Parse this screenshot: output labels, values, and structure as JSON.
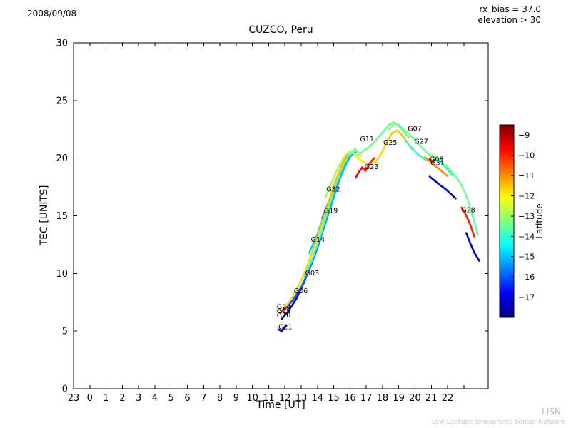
{
  "header": {
    "date": "2008/09/08",
    "rx_bias": "rx_bias = 37.0",
    "elevation": "elevation > 30"
  },
  "footer": {
    "watermark_acronym": "LISN",
    "watermark_full": "Low-Latitude Ionospheric Sensor Network"
  },
  "chart_data": {
    "type": "scatter",
    "title": "CUZCO, Peru",
    "xlabel": "Time [UT]",
    "ylabel": "TEC [UNITS]",
    "xlim": [
      -1,
      24.5
    ],
    "ylim": [
      0,
      30
    ],
    "grid": false,
    "xticks": [
      {
        "value": -1,
        "label": "23"
      },
      {
        "value": 0,
        "label": "0"
      },
      {
        "value": 1,
        "label": "1"
      },
      {
        "value": 2,
        "label": "2"
      },
      {
        "value": 3,
        "label": "3"
      },
      {
        "value": 4,
        "label": "4"
      },
      {
        "value": 5,
        "label": "5"
      },
      {
        "value": 6,
        "label": "6"
      },
      {
        "value": 7,
        "label": "7"
      },
      {
        "value": 8,
        "label": "8"
      },
      {
        "value": 9,
        "label": "9"
      },
      {
        "value": 10,
        "label": "10"
      },
      {
        "value": 11,
        "label": "11"
      },
      {
        "value": 12,
        "label": "12"
      },
      {
        "value": 13,
        "label": "13"
      },
      {
        "value": 14,
        "label": "14"
      },
      {
        "value": 15,
        "label": "15"
      },
      {
        "value": 16,
        "label": "16"
      },
      {
        "value": 17,
        "label": "17"
      },
      {
        "value": 18,
        "label": "18"
      },
      {
        "value": 19,
        "label": "19"
      },
      {
        "value": 20,
        "label": "20"
      },
      {
        "value": 21,
        "label": "21"
      },
      {
        "value": 22,
        "label": "22"
      },
      {
        "value": 23,
        "label": ""
      },
      {
        "value": 24,
        "label": ""
      }
    ],
    "yticks": [
      0,
      5,
      10,
      15,
      20,
      25,
      30
    ],
    "colorbar": {
      "label": "Latitude",
      "min": -18,
      "max": -8.5,
      "ticks": [
        -9,
        -10,
        -11,
        -12,
        -13,
        -14,
        -15,
        -16,
        -17
      ],
      "colormap": "jet"
    },
    "tracks": [
      {
        "sat": "G21",
        "points": [
          [
            11.6,
            5.15,
            -17.6
          ],
          [
            11.8,
            5.0,
            -17.6
          ],
          [
            12.05,
            5.45,
            -17.5
          ]
        ]
      },
      {
        "sat": "G10",
        "points": [
          [
            11.8,
            6.05,
            -17.6
          ],
          [
            12.2,
            6.7,
            -17.4
          ],
          [
            12.7,
            7.8,
            -17.1
          ],
          [
            13.2,
            9.3,
            -16.9
          ],
          [
            13.7,
            11.2,
            -16.7
          ],
          [
            14.2,
            13.3,
            -16.5
          ],
          [
            14.7,
            15.5,
            -16.3
          ],
          [
            15.1,
            17.3,
            -16.1
          ],
          [
            15.5,
            18.9,
            -15.9
          ],
          [
            15.9,
            20.1,
            -15.8
          ],
          [
            16.2,
            20.6,
            -15.7
          ]
        ]
      },
      {
        "sat": "G06",
        "points": [
          [
            12.0,
            6.9,
            -16.3
          ],
          [
            12.5,
            7.7,
            -16.1
          ],
          [
            13.0,
            8.8,
            -15.9
          ],
          [
            13.5,
            10.3,
            -15.7
          ],
          [
            14.0,
            12.2,
            -15.5
          ],
          [
            14.5,
            14.4,
            -15.4
          ],
          [
            15.0,
            16.6,
            -15.2
          ],
          [
            15.4,
            18.3,
            -15.1
          ],
          [
            15.8,
            19.6,
            -15.0
          ],
          [
            16.1,
            20.3,
            -14.9
          ]
        ]
      },
      {
        "sat": "G14",
        "points": [
          [
            13.5,
            11.8,
            -15.1
          ],
          [
            14.0,
            13.4,
            -14.9
          ],
          [
            14.5,
            15.4,
            -14.8
          ],
          [
            15.0,
            17.4,
            -14.6
          ],
          [
            15.4,
            18.9,
            -14.5
          ],
          [
            15.8,
            20.0,
            -14.4
          ],
          [
            16.1,
            20.5,
            -14.3
          ]
        ]
      },
      {
        "sat": "G19",
        "points": [
          [
            14.3,
            14.8,
            -15.8
          ],
          [
            14.8,
            16.6,
            -15.6
          ],
          [
            15.3,
            18.4,
            -15.4
          ],
          [
            15.7,
            19.6,
            -15.3
          ],
          [
            16.0,
            20.2,
            -15.2
          ],
          [
            16.35,
            20.5,
            -15.1
          ]
        ]
      },
      {
        "sat": "G03",
        "points": [
          [
            13.2,
            9.7,
            -13.9
          ],
          [
            13.7,
            11.3,
            -13.8
          ],
          [
            14.2,
            13.4,
            -13.7
          ],
          [
            14.7,
            15.7,
            -13.6
          ],
          [
            15.1,
            17.6,
            -13.5
          ],
          [
            15.5,
            19.1,
            -13.4
          ],
          [
            15.9,
            20.2,
            -13.3
          ]
        ]
      },
      {
        "sat": "G32",
        "points": [
          [
            14.5,
            16.6,
            -13.0
          ],
          [
            14.9,
            18.0,
            -12.9
          ],
          [
            15.3,
            19.3,
            -12.9
          ],
          [
            15.7,
            20.2,
            -12.8
          ],
          [
            16.0,
            20.6,
            -12.8
          ],
          [
            16.35,
            20.3,
            -12.7
          ],
          [
            16.7,
            20.2,
            -12.7
          ]
        ]
      },
      {
        "sat": "G24",
        "points": [
          [
            11.75,
            6.7,
            -11.9
          ],
          [
            12.2,
            7.4,
            -11.8
          ],
          [
            12.7,
            8.5,
            -11.7
          ],
          [
            13.2,
            10.0,
            -11.7
          ],
          [
            13.7,
            11.9,
            -11.6
          ],
          [
            14.2,
            14.0,
            -11.5
          ],
          [
            14.7,
            16.2,
            -11.5
          ],
          [
            15.1,
            18.0,
            -11.4
          ],
          [
            15.5,
            19.4,
            -11.4
          ],
          [
            15.85,
            20.3,
            -11.3
          ]
        ]
      },
      {
        "sat": "G29",
        "points": [
          [
            11.7,
            6.55,
            -10.1
          ],
          [
            11.95,
            6.9,
            -10.0
          ],
          [
            12.15,
            7.1,
            -9.9
          ]
        ]
      },
      {
        "sat": "G11",
        "points": [
          [
            16.0,
            20.3,
            -13.3
          ],
          [
            16.3,
            20.8,
            -13.3
          ],
          [
            16.6,
            20.4,
            -13.3
          ],
          [
            16.9,
            20.7,
            -13.4
          ],
          [
            17.2,
            21.0,
            -13.4
          ],
          [
            17.5,
            21.4,
            -13.4
          ],
          [
            17.8,
            21.9,
            -13.5
          ],
          [
            18.1,
            22.4,
            -13.5
          ],
          [
            18.4,
            22.9,
            -13.5
          ],
          [
            18.7,
            23.1,
            -13.5
          ],
          [
            19.0,
            22.8,
            -13.6
          ],
          [
            19.3,
            22.3,
            -13.6
          ],
          [
            19.6,
            21.8,
            -13.6
          ]
        ]
      },
      {
        "sat": "G25",
        "points": [
          [
            16.4,
            20.1,
            -12.0
          ],
          [
            16.8,
            19.7,
            -11.9
          ],
          [
            17.2,
            19.4,
            -11.8
          ],
          [
            17.6,
            19.7,
            -11.7
          ],
          [
            18.0,
            20.6,
            -11.7
          ],
          [
            18.3,
            21.5,
            -11.6
          ],
          [
            18.6,
            22.2,
            -11.6
          ],
          [
            18.9,
            22.4,
            -11.5
          ],
          [
            19.2,
            22.0,
            -11.5
          ],
          [
            19.5,
            21.4,
            -11.4
          ],
          [
            19.8,
            20.8,
            -11.4
          ]
        ]
      },
      {
        "sat": "G23",
        "points": [
          [
            16.35,
            18.3,
            -9.7
          ],
          [
            16.55,
            18.8,
            -9.7
          ],
          [
            16.75,
            19.2,
            -9.8
          ],
          [
            16.95,
            18.9,
            -9.8
          ],
          [
            17.15,
            19.4,
            -9.9
          ],
          [
            17.35,
            19.8,
            -9.9
          ],
          [
            17.5,
            20.0,
            -10.0
          ]
        ]
      },
      {
        "sat": "G07",
        "points": [
          [
            18.4,
            22.5,
            -13.1
          ],
          [
            18.7,
            23.0,
            -13.1
          ],
          [
            19.0,
            22.9,
            -13.2
          ],
          [
            19.3,
            22.5,
            -13.2
          ],
          [
            19.7,
            22.0,
            -13.3
          ],
          [
            20.1,
            21.4,
            -13.3
          ],
          [
            20.5,
            20.8,
            -13.4
          ],
          [
            20.9,
            20.3,
            -13.4
          ],
          [
            21.3,
            20.0,
            -13.5
          ],
          [
            21.6,
            19.9,
            -13.5
          ]
        ]
      },
      {
        "sat": "G27",
        "points": [
          [
            19.4,
            21.5,
            -13.9
          ],
          [
            19.8,
            20.9,
            -13.9
          ],
          [
            20.2,
            20.3,
            -14.0
          ],
          [
            20.6,
            19.9,
            -14.0
          ],
          [
            21.0,
            19.7,
            -14.0
          ],
          [
            21.35,
            19.95,
            -14.1
          ],
          [
            21.7,
            19.5,
            -14.1
          ],
          [
            22.0,
            19.0,
            -14.1
          ],
          [
            22.3,
            18.5,
            -14.2
          ]
        ]
      },
      {
        "points": [
          [
            21.9,
            19.4,
            -13.2
          ],
          [
            22.2,
            18.9,
            -13.2
          ],
          [
            22.5,
            18.4,
            -13.3
          ],
          [
            22.8,
            17.8,
            -13.3
          ],
          [
            23.1,
            16.9,
            -13.4
          ],
          [
            23.35,
            15.9,
            -13.4
          ],
          [
            23.6,
            14.7,
            -13.5
          ],
          [
            23.85,
            13.4,
            -13.5
          ]
        ]
      },
      {
        "sat": "G28",
        "points": [
          [
            22.85,
            15.7,
            -10.2
          ],
          [
            23.05,
            15.3,
            -10.1
          ],
          [
            23.25,
            14.7,
            -10.0
          ],
          [
            23.45,
            14.0,
            -9.9
          ],
          [
            23.65,
            13.2,
            -9.9
          ]
        ]
      },
      {
        "points": [
          [
            23.15,
            13.5,
            -17.2
          ],
          [
            23.4,
            12.6,
            -17.3
          ],
          [
            23.65,
            11.8,
            -17.4
          ],
          [
            23.95,
            11.1,
            -17.5
          ]
        ]
      },
      {
        "points": [
          [
            20.9,
            18.4,
            -17.2
          ],
          [
            21.2,
            18.05,
            -17.2
          ],
          [
            21.5,
            17.7,
            -17.3
          ],
          [
            21.85,
            17.35,
            -17.3
          ],
          [
            22.2,
            16.9,
            -17.4
          ],
          [
            22.5,
            16.5,
            -17.4
          ]
        ]
      },
      {
        "sat": "G08",
        "points": [
          [
            20.6,
            20.1,
            -11.2
          ],
          [
            21.0,
            19.6,
            -11.1
          ],
          [
            21.35,
            19.2,
            -11.0
          ],
          [
            21.7,
            18.8,
            -11.0
          ],
          [
            22.0,
            18.45,
            -10.9
          ]
        ]
      },
      {
        "sat": "G31",
        "points": [
          [
            20.9,
            19.9,
            -9.6
          ],
          [
            21.15,
            19.65,
            -9.5
          ]
        ]
      }
    ],
    "annotations": [
      {
        "text": "G07",
        "t": 19.55,
        "tec": 22.35
      },
      {
        "text": "G27",
        "t": 19.95,
        "tec": 21.25
      },
      {
        "text": "G11",
        "t": 16.62,
        "tec": 21.45
      },
      {
        "text": "G25",
        "t": 18.05,
        "tec": 21.15
      },
      {
        "text": "G23",
        "t": 16.9,
        "tec": 19.05
      },
      {
        "text": "G32",
        "t": 14.55,
        "tec": 17.1
      },
      {
        "text": "G19",
        "t": 14.4,
        "tec": 15.25
      },
      {
        "text": "G14",
        "t": 13.6,
        "tec": 12.75
      },
      {
        "text": "G03",
        "t": 13.25,
        "tec": 9.85
      },
      {
        "text": "G06",
        "t": 12.55,
        "tec": 8.3
      },
      {
        "text": "G24",
        "t": 11.5,
        "tec": 6.9
      },
      {
        "text": "G29",
        "t": 11.5,
        "tec": 6.55
      },
      {
        "text": "G10",
        "t": 11.5,
        "tec": 6.2
      },
      {
        "text": "G21",
        "t": 11.6,
        "tec": 5.15
      },
      {
        "text": "G08",
        "t": 20.9,
        "tec": 19.7
      },
      {
        "text": "G31",
        "t": 20.95,
        "tec": 19.4
      },
      {
        "text": "G28",
        "t": 22.85,
        "tec": 15.3
      }
    ]
  }
}
